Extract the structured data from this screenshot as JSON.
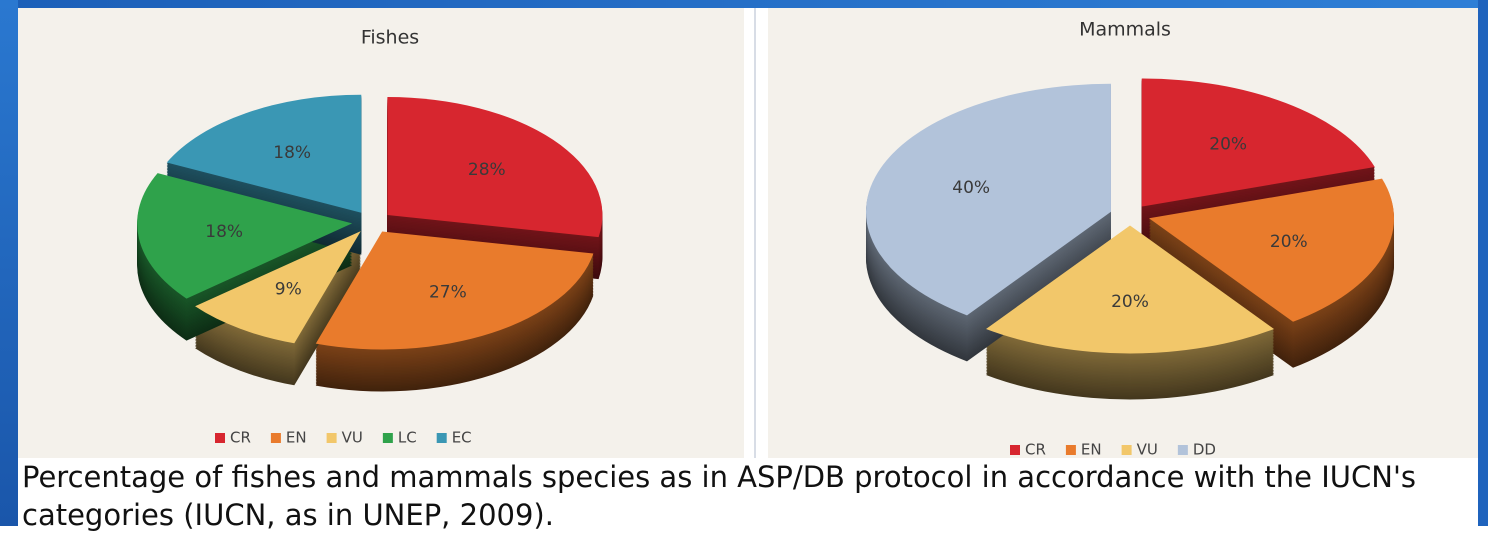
{
  "chart_data": [
    {
      "type": "pie",
      "title": "Fishes",
      "categories": [
        "CR",
        "EN",
        "VU",
        "LC",
        "EC"
      ],
      "values": [
        28,
        27,
        9,
        18,
        18
      ],
      "value_labels": [
        "28%",
        "27%",
        "9%",
        "18%",
        "18%"
      ],
      "colors": [
        "#d7262f",
        "#e97b2c",
        "#f2c76a",
        "#2fa24b",
        "#3a97b4"
      ]
    },
    {
      "type": "pie",
      "title": "Mammals",
      "categories": [
        "CR",
        "EN",
        "VU",
        "DD"
      ],
      "values": [
        20,
        20,
        20,
        40
      ],
      "value_labels": [
        "20%",
        "20%",
        "20%",
        "40%"
      ],
      "colors": [
        "#d7262f",
        "#e97b2c",
        "#f2c76a",
        "#b2c3da"
      ]
    }
  ],
  "caption": "Percentage of fishes and mammals species as in ASP/DB protocol in accordance with the IUCN's categories (IUCN, as in UNEP, 2009)."
}
